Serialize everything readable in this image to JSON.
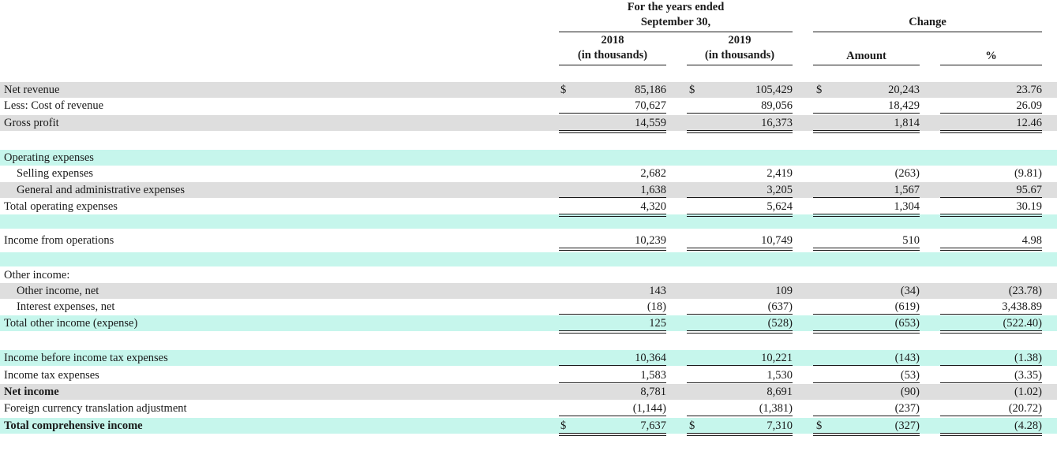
{
  "header": {
    "period_title_1": "For the years ended",
    "period_title_2": "September 30,",
    "change_title": "Change",
    "col_2018_year": "2018",
    "col_2018_unit": "(in thousands)",
    "col_2019_year": "2019",
    "col_2019_unit": "(in thousands)",
    "col_amount": "Amount",
    "col_percent": "%"
  },
  "currency_symbol": "$",
  "rows": [
    {
      "label": "Net revenue",
      "v2018": "85,186",
      "v2019": "105,429",
      "amount": "20,243",
      "percent": "23.76"
    },
    {
      "label": "Less: Cost of revenue",
      "v2018": "70,627",
      "v2019": "89,056",
      "amount": "18,429",
      "percent": "26.09"
    },
    {
      "label": "Gross profit",
      "v2018": "14,559",
      "v2019": "16,373",
      "amount": "1,814",
      "percent": "12.46"
    },
    {
      "label": "Operating expenses"
    },
    {
      "label": "Selling expenses",
      "v2018": "2,682",
      "v2019": "2,419",
      "amount": "(263)",
      "percent": "(9.81)"
    },
    {
      "label": "General and administrative expenses",
      "v2018": "1,638",
      "v2019": "3,205",
      "amount": "1,567",
      "percent": "95.67"
    },
    {
      "label": "Total operating expenses",
      "v2018": "4,320",
      "v2019": "5,624",
      "amount": "1,304",
      "percent": "30.19"
    },
    {
      "label": "Income from operations",
      "v2018": "10,239",
      "v2019": "10,749",
      "amount": "510",
      "percent": "4.98"
    },
    {
      "label": "Other income:"
    },
    {
      "label": "Other income, net",
      "v2018": "143",
      "v2019": "109",
      "amount": "(34)",
      "percent": "(23.78)"
    },
    {
      "label": "Interest expenses, net",
      "v2018": "(18)",
      "v2019": "(637)",
      "amount": "(619)",
      "percent": "3,438.89"
    },
    {
      "label": "Total other income (expense)",
      "v2018": "125",
      "v2019": "(528)",
      "amount": "(653)",
      "percent": "(522.40)"
    },
    {
      "label": "Income before income tax expenses",
      "v2018": "10,364",
      "v2019": "10,221",
      "amount": "(143)",
      "percent": "(1.38)"
    },
    {
      "label": "Income tax expenses",
      "v2018": "1,583",
      "v2019": "1,530",
      "amount": "(53)",
      "percent": "(3.35)"
    },
    {
      "label": "Net income",
      "v2018": "8,781",
      "v2019": "8,691",
      "amount": "(90)",
      "percent": "(1.02)"
    },
    {
      "label": "Foreign currency translation adjustment",
      "v2018": "(1,144)",
      "v2019": "(1,381)",
      "amount": "(237)",
      "percent": "(20.72)"
    },
    {
      "label": "Total comprehensive income",
      "v2018": "7,637",
      "v2019": "7,310",
      "amount": "(327)",
      "percent": "(4.28)"
    }
  ]
}
